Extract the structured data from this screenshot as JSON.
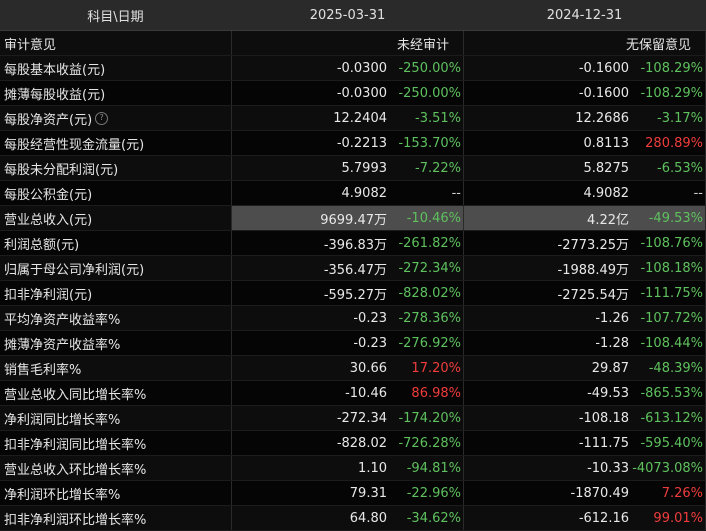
{
  "header": {
    "col0": "科目\\日期",
    "col1": "2025-03-31",
    "col2": "2024-12-31"
  },
  "audit": {
    "label": "审计意见",
    "p1": "未经审计",
    "p2": "无保留意见"
  },
  "rows": [
    {
      "label": "每股基本收益(元)",
      "p1": {
        "v": "-0.0300",
        "c": "-250.00%",
        "t": "neg"
      },
      "p2": {
        "v": "-0.1600",
        "c": "-108.29%",
        "t": "neg"
      }
    },
    {
      "label": "摊薄每股收益(元)",
      "p1": {
        "v": "-0.0300",
        "c": "-250.00%",
        "t": "neg"
      },
      "p2": {
        "v": "-0.1600",
        "c": "-108.29%",
        "t": "neg"
      }
    },
    {
      "label": "每股净资产(元)",
      "help": true,
      "p1": {
        "v": "12.2404",
        "c": "-3.51%",
        "t": "neg"
      },
      "p2": {
        "v": "12.2686",
        "c": "-3.17%",
        "t": "neg"
      }
    },
    {
      "label": "每股经营性现金流量(元)",
      "p1": {
        "v": "-0.2213",
        "c": "-153.70%",
        "t": "neg"
      },
      "p2": {
        "v": "0.8113",
        "c": "280.89%",
        "t": "pos"
      }
    },
    {
      "label": "每股未分配利润(元)",
      "p1": {
        "v": "5.7993",
        "c": "-7.22%",
        "t": "neg"
      },
      "p2": {
        "v": "5.8275",
        "c": "-6.53%",
        "t": "neg"
      }
    },
    {
      "label": "每股公积金(元)",
      "p1": {
        "v": "4.9082",
        "c": "--",
        "t": "flat"
      },
      "p2": {
        "v": "4.9082",
        "c": "--",
        "t": "flat"
      }
    },
    {
      "label": "营业总收入(元)",
      "highlight": true,
      "p1": {
        "v": "9699.47万",
        "c": "-10.46%",
        "t": "neg"
      },
      "p2": {
        "v": "4.22亿",
        "c": "-49.53%",
        "t": "neg"
      }
    },
    {
      "label": "利润总额(元)",
      "p1": {
        "v": "-396.83万",
        "c": "-261.82%",
        "t": "neg"
      },
      "p2": {
        "v": "-2773.25万",
        "c": "-108.76%",
        "t": "neg"
      }
    },
    {
      "label": "归属于母公司净利润(元)",
      "p1": {
        "v": "-356.47万",
        "c": "-272.34%",
        "t": "neg"
      },
      "p2": {
        "v": "-1988.49万",
        "c": "-108.18%",
        "t": "neg"
      }
    },
    {
      "label": "扣非净利润(元)",
      "p1": {
        "v": "-595.27万",
        "c": "-828.02%",
        "t": "neg"
      },
      "p2": {
        "v": "-2725.54万",
        "c": "-111.75%",
        "t": "neg"
      }
    },
    {
      "label": "平均净资产收益率%",
      "p1": {
        "v": "-0.23",
        "c": "-278.36%",
        "t": "neg"
      },
      "p2": {
        "v": "-1.26",
        "c": "-107.72%",
        "t": "neg"
      }
    },
    {
      "label": "摊薄净资产收益率%",
      "p1": {
        "v": "-0.23",
        "c": "-276.92%",
        "t": "neg"
      },
      "p2": {
        "v": "-1.28",
        "c": "-108.44%",
        "t": "neg"
      }
    },
    {
      "label": "销售毛利率%",
      "p1": {
        "v": "30.66",
        "c": "17.20%",
        "t": "pos"
      },
      "p2": {
        "v": "29.87",
        "c": "-48.39%",
        "t": "neg"
      }
    },
    {
      "label": "营业总收入同比增长率%",
      "p1": {
        "v": "-10.46",
        "c": "86.98%",
        "t": "pos"
      },
      "p2": {
        "v": "-49.53",
        "c": "-865.53%",
        "t": "neg"
      }
    },
    {
      "label": "净利润同比增长率%",
      "p1": {
        "v": "-272.34",
        "c": "-174.20%",
        "t": "neg"
      },
      "p2": {
        "v": "-108.18",
        "c": "-613.12%",
        "t": "neg"
      }
    },
    {
      "label": "扣非净利润同比增长率%",
      "p1": {
        "v": "-828.02",
        "c": "-726.28%",
        "t": "neg"
      },
      "p2": {
        "v": "-111.75",
        "c": "-595.40%",
        "t": "neg"
      }
    },
    {
      "label": "营业总收入环比增长率%",
      "p1": {
        "v": "1.10",
        "c": "-94.81%",
        "t": "neg"
      },
      "p2": {
        "v": "-10.33",
        "c": "-4073.08%",
        "t": "neg"
      }
    },
    {
      "label": "净利润环比增长率%",
      "p1": {
        "v": "79.31",
        "c": "-22.96%",
        "t": "neg"
      },
      "p2": {
        "v": "-1870.49",
        "c": "7.26%",
        "t": "pos"
      }
    },
    {
      "label": "扣非净利润环比增长率%",
      "p1": {
        "v": "64.80",
        "c": "-34.62%",
        "t": "neg"
      },
      "p2": {
        "v": "-612.16",
        "c": "99.01%",
        "t": "pos"
      }
    }
  ],
  "colors": {
    "negative": "#5ec15e",
    "positive": "#f03c3c",
    "highlight_bg": "#4d4d4d",
    "header_bg": "#2a2a2a"
  },
  "icons": {
    "help": "question-circle-icon",
    "help_glyph": "?"
  }
}
